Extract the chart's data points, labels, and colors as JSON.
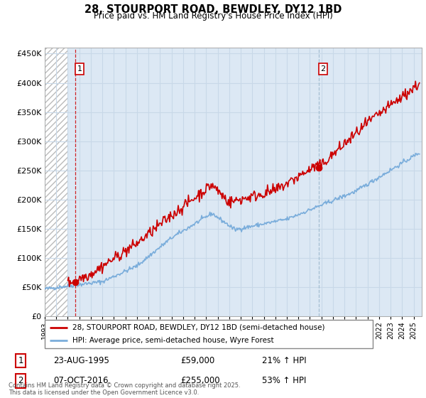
{
  "title": "28, STOURPORT ROAD, BEWDLEY, DY12 1BD",
  "subtitle": "Price paid vs. HM Land Registry's House Price Index (HPI)",
  "legend_line1": "28, STOURPORT ROAD, BEWDLEY, DY12 1BD (semi-detached house)",
  "legend_line2": "HPI: Average price, semi-detached house, Wyre Forest",
  "footer": "Contains HM Land Registry data © Crown copyright and database right 2025.\nThis data is licensed under the Open Government Licence v3.0.",
  "annotation1_label": "1",
  "annotation1_date": "23-AUG-1995",
  "annotation1_price": "£59,000",
  "annotation1_hpi": "21% ↑ HPI",
  "annotation2_label": "2",
  "annotation2_date": "07-OCT-2016",
  "annotation2_price": "£255,000",
  "annotation2_hpi": "53% ↑ HPI",
  "price_color": "#cc0000",
  "hpi_color": "#7aaddb",
  "vline1_color": "#cc0000",
  "vline2_color": "#9ab8cc",
  "ylim": [
    0,
    460000
  ],
  "xlim_start": 1993.0,
  "xlim_end": 2025.7,
  "sale1_x": 1995.646,
  "sale1_y": 59000,
  "sale2_x": 2016.77,
  "sale2_y": 255000,
  "hatch_color": "#bbbbbb",
  "grid_color": "#c8d8e8",
  "bg_color": "#e8f0f8",
  "plot_bg": "#dce8f4"
}
